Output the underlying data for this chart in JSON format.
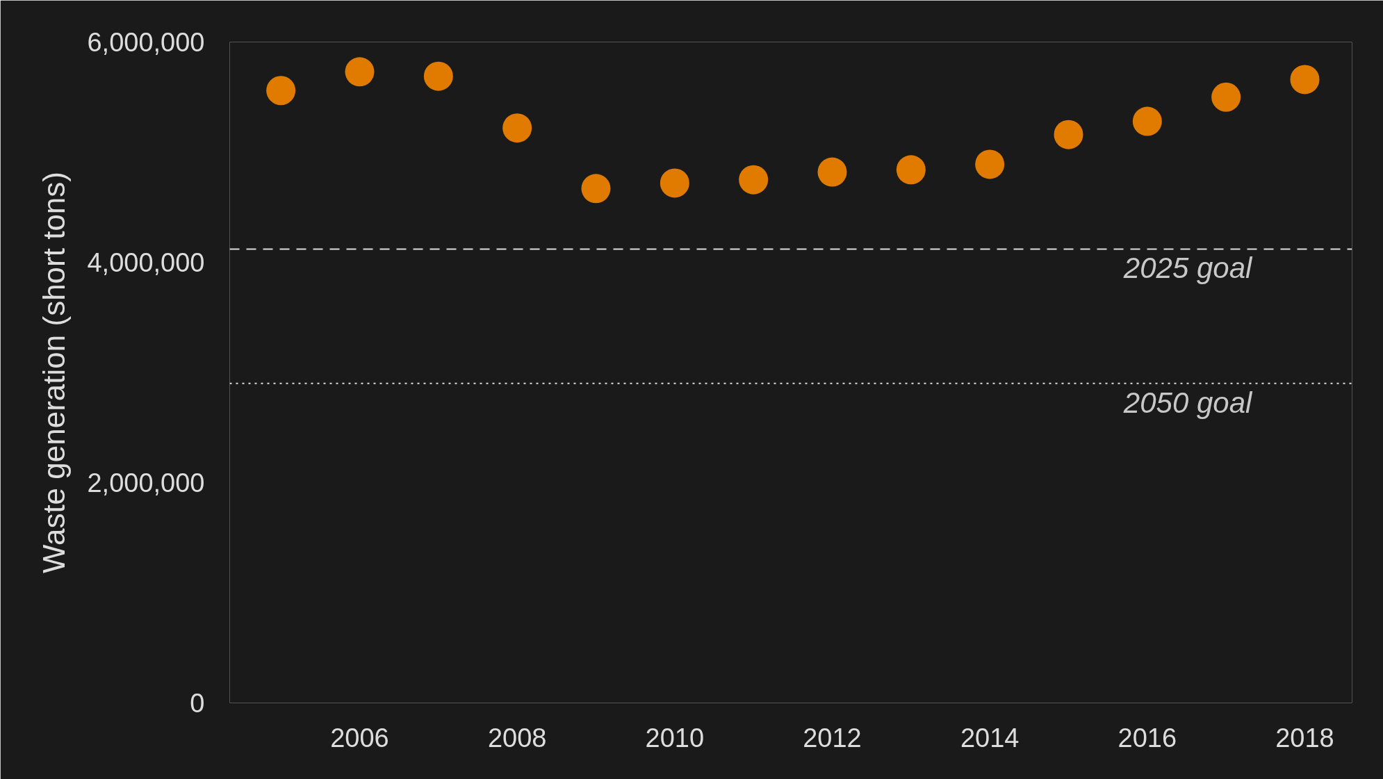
{
  "chart_data": {
    "type": "scatter",
    "ylabel": "Waste generation (short tons)",
    "x": [
      2005,
      2006,
      2007,
      2008,
      2009,
      2010,
      2011,
      2012,
      2013,
      2014,
      2015,
      2016,
      2017,
      2018
    ],
    "series": [
      {
        "color": "#e07b00",
        "values": [
          5560000,
          5730000,
          5690000,
          5220000,
          4670000,
          4720000,
          4750000,
          4820000,
          4840000,
          4890000,
          5160000,
          5280000,
          5500000,
          5660000
        ]
      }
    ],
    "xlim": [
      2004.35,
      2018.6
    ],
    "xticks": [
      2006,
      2008,
      2010,
      2012,
      2014,
      2016,
      2018
    ],
    "ylim": [
      0,
      6000000
    ],
    "yticks": [
      {
        "value": 0,
        "label": "0"
      },
      {
        "value": 2000000,
        "label": "2,000,000"
      },
      {
        "value": 4000000,
        "label": "4,000,000"
      },
      {
        "value": 6000000,
        "label": "6,000,000"
      }
    ],
    "ref_lines": [
      {
        "axis": "y",
        "value": 4120000,
        "label": "2025 goal",
        "line_style": "dashed",
        "color": "#dddddd"
      },
      {
        "axis": "y",
        "value": 2900000,
        "label": "2050 goal",
        "line_style": "dotted",
        "color": "#dddddd"
      }
    ],
    "marker": "circle",
    "grid": false
  }
}
